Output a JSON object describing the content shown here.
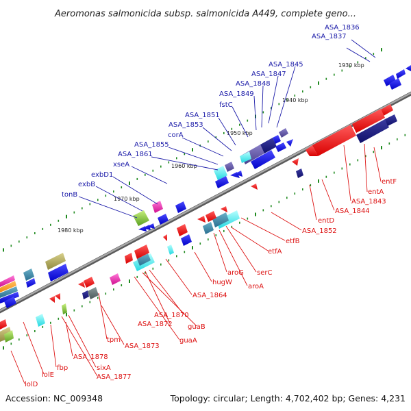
{
  "title": "Aeromonas salmonicida subsp. salmonicida A449, complete geno...",
  "footer": {
    "accession": "Accession: NC_009348",
    "summary": "Topology: circular; Length: 4,702,402 bp; Genes: 4,231"
  },
  "kbp_labels": [
    "1930 kbp",
    "1940 kbp",
    "1950 kbp",
    "1960 kbp",
    "1970 kbp",
    "1980 kbp"
  ],
  "outer_gene_labels": [
    "ASA_1836",
    "ASA_1837",
    "ASA_1845",
    "ASA_1847",
    "ASA_1848",
    "ASA_1849",
    "fstC",
    "ASA_1851",
    "ASA_1853",
    "corA",
    "ASA_1855",
    "ASA_1861",
    "xseA",
    "exbD1",
    "exbB",
    "tonB"
  ],
  "inner_gene_labels": [
    "entF",
    "entA",
    "ASA_1843",
    "ASA_1844",
    "entD",
    "ASA_1852",
    "etfB",
    "etfA",
    "serC",
    "aroA",
    "aroG",
    "hugW",
    "ASA_1864",
    "ASA_1870",
    "guaB",
    "guaA",
    "ASA_1872",
    "ASA_1873",
    "tpm",
    "ASA_1878",
    "sixA",
    "ASA_1877",
    "fbp",
    "lolE",
    "lolD"
  ],
  "colors": {
    "outer_label": "#1a1aa8",
    "inner_label": "#dd1111",
    "backbone": "#8a8a8a",
    "tick": "#1f8a1f",
    "forward_gene": "#1010e0",
    "reverse_gene": "#ee1111"
  }
}
